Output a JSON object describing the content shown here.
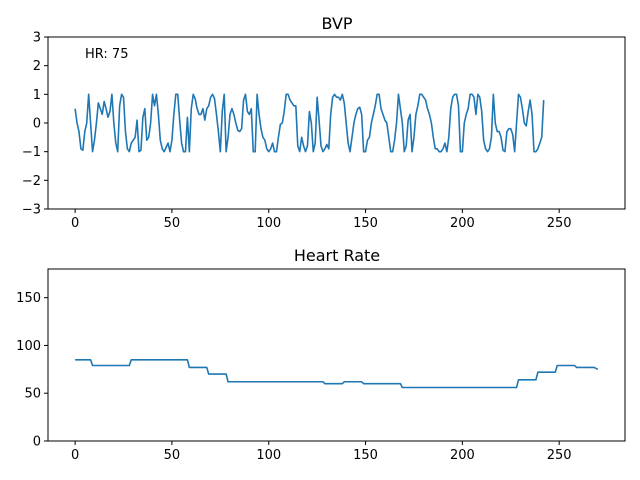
{
  "chart_data": [
    {
      "type": "line",
      "title": "BVP",
      "xlabel": "",
      "ylabel": "",
      "xlim": [
        -14,
        284
      ],
      "ylim": [
        -3,
        3
      ],
      "xticks": [
        0,
        50,
        100,
        150,
        200,
        250
      ],
      "yticks": [
        -3,
        -2,
        -1,
        0,
        1,
        2,
        3
      ],
      "grid": false,
      "annotation": "HR: 75",
      "color": "#1f77b4",
      "series": [
        {
          "x_start": 0,
          "x_step": 1,
          "values": [
            0.5,
            0.0,
            -0.3,
            -0.9,
            -0.95,
            -0.3,
            0.0,
            1.0,
            0.0,
            -1.0,
            -0.6,
            0.0,
            0.7,
            0.5,
            0.3,
            0.75,
            0.5,
            0.2,
            0.4,
            1.0,
            0.0,
            -0.7,
            -1.0,
            0.6,
            1.0,
            0.9,
            -0.3,
            -0.9,
            -1.0,
            -0.7,
            -0.6,
            -0.5,
            0.1,
            -1.0,
            -0.95,
            0.2,
            0.5,
            -0.6,
            -0.5,
            0.0,
            1.0,
            0.6,
            1.0,
            0.3,
            -0.6,
            -0.9,
            -1.0,
            -0.85,
            -0.7,
            -1.0,
            -0.6,
            0.3,
            1.0,
            1.0,
            0.1,
            -0.7,
            -1.0,
            -1.0,
            0.2,
            -1.0,
            0.5,
            1.0,
            0.85,
            0.5,
            0.3,
            0.3,
            0.5,
            0.1,
            0.5,
            0.6,
            0.9,
            1.0,
            0.85,
            0.3,
            -0.3,
            -1.0,
            0.4,
            1.0,
            -1.0,
            -0.5,
            0.3,
            0.5,
            0.3,
            0.0,
            -0.25,
            -0.3,
            -0.2,
            0.8,
            1.0,
            0.4,
            0.3,
            0.5,
            -1.0,
            -1.0,
            1.0,
            0.3,
            -0.2,
            -0.5,
            -0.6,
            -0.9,
            -1.0,
            -0.9,
            -0.7,
            -1.0,
            -1.0,
            -0.5,
            -0.05,
            0.0,
            0.4,
            1.0,
            1.0,
            0.8,
            0.7,
            0.6,
            0.6,
            -0.8,
            -1.0,
            -0.5,
            -0.8,
            -1.0,
            -0.8,
            0.4,
            0.0,
            -1.0,
            -0.7,
            0.9,
            0.1,
            -0.8,
            -1.0,
            -0.9,
            -0.75,
            -0.9,
            0.3,
            0.9,
            1.0,
            0.9,
            0.9,
            0.8,
            1.0,
            0.7,
            0.0,
            -0.7,
            -1.0,
            -0.5,
            0.0,
            0.3,
            0.5,
            0.55,
            0.3,
            -1.0,
            -1.0,
            -0.6,
            -0.5,
            0.0,
            0.3,
            0.6,
            1.0,
            1.0,
            0.5,
            0.3,
            0.1,
            0.0,
            -0.5,
            -1.0,
            -1.0,
            -0.6,
            0.0,
            1.0,
            0.5,
            0.0,
            -1.0,
            -0.8,
            0.1,
            0.3,
            -1.0,
            -0.5,
            0.3,
            0.6,
            1.0,
            1.0,
            0.9,
            0.8,
            0.5,
            0.3,
            0.0,
            -0.5,
            -0.9,
            -0.9,
            -1.0,
            -1.0,
            -0.9,
            -0.7,
            -1.0,
            -0.5,
            0.5,
            0.9,
            1.0,
            1.0,
            0.6,
            -1.0,
            -1.0,
            0.0,
            0.3,
            0.5,
            1.0,
            1.0,
            0.9,
            0.3,
            1.0,
            0.9,
            0.4,
            -0.6,
            -0.9,
            -1.0,
            -0.9,
            -0.5,
            1.0,
            0.0,
            -0.3,
            -0.3,
            -0.5,
            -0.95,
            -1.0,
            -0.3,
            -0.2,
            -0.2,
            -0.4,
            -1.0,
            0.0,
            1.0,
            0.9,
            0.5,
            0.0,
            -0.1,
            0.4,
            0.8,
            0.3,
            -1.0,
            -1.0,
            -0.9,
            -0.7,
            -0.5,
            0.8
          ]
        }
      ]
    },
    {
      "type": "line",
      "title": "Heart Rate",
      "xlabel": "",
      "ylabel": "",
      "xlim": [
        -14,
        284
      ],
      "ylim": [
        0,
        180
      ],
      "xticks": [
        0,
        50,
        100,
        150,
        200,
        250
      ],
      "yticks": [
        0,
        50,
        100,
        150
      ],
      "grid": false,
      "color": "#1f77b4",
      "series": [
        {
          "x": [
            0,
            8,
            9,
            28,
            29,
            58,
            59,
            68,
            69,
            78,
            79,
            128,
            129,
            138,
            139,
            148,
            149,
            168,
            169,
            228,
            229,
            238,
            239,
            248,
            249,
            258,
            259,
            268,
            270
          ],
          "values": [
            85,
            85,
            79,
            79,
            85,
            85,
            77,
            77,
            70,
            70,
            62,
            62,
            60,
            60,
            62,
            62,
            60,
            60,
            56,
            56,
            64,
            64,
            72,
            72,
            79,
            79,
            77,
            77,
            75
          ]
        }
      ]
    }
  ]
}
